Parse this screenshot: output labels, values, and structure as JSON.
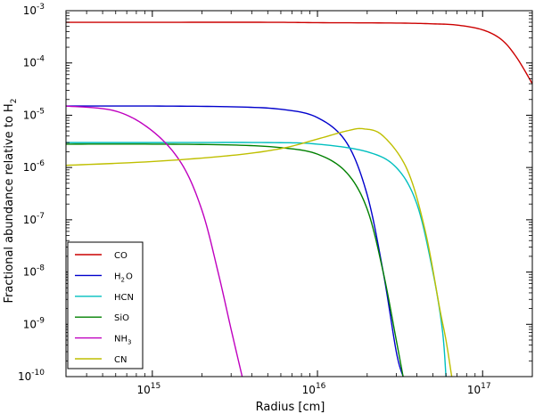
{
  "chart_data": {
    "type": "line",
    "xlabel": "Radius [cm]",
    "ylabel": "Fractional abundance relative to H",
    "ylabel_sub": "2",
    "xscale": "log",
    "yscale": "log",
    "xlim": [
      300000000000000.0,
      2e+17
    ],
    "ylim": [
      1e-10,
      0.001
    ],
    "x_ticks": [
      {
        "value": 1000000000000000.0,
        "base": "10",
        "exp": "15"
      },
      {
        "value": 1e+16,
        "base": "10",
        "exp": "16"
      },
      {
        "value": 1e+17,
        "base": "10",
        "exp": "17"
      }
    ],
    "y_ticks": [
      {
        "value": 1e-10,
        "base": "10",
        "exp": "-10"
      },
      {
        "value": 1e-09,
        "base": "10",
        "exp": "-9"
      },
      {
        "value": 1e-08,
        "base": "10",
        "exp": "-8"
      },
      {
        "value": 1e-07,
        "base": "10",
        "exp": "-7"
      },
      {
        "value": 1e-06,
        "base": "10",
        "exp": "-6"
      },
      {
        "value": 1e-05,
        "base": "10",
        "exp": "-5"
      },
      {
        "value": 0.0001,
        "base": "10",
        "exp": "-4"
      },
      {
        "value": 0.001,
        "base": "10",
        "exp": "-3"
      }
    ],
    "legend_position": "lower-left",
    "series": [
      {
        "name": "CO",
        "label": "CO",
        "sub": "",
        "color": "#cc0000",
        "x": [
          300000000000000.0,
          1000000000000000.0,
          5000000000000000.0,
          1e+16,
          3e+16,
          5e+16,
          7e+16,
          1e+17,
          1.3e+17,
          1.6e+17,
          2e+17
        ],
        "y": [
          0.0006,
          0.0006,
          0.0006,
          0.00059,
          0.00058,
          0.00056,
          0.00053,
          0.00043,
          0.00028,
          0.00013,
          4e-05
        ]
      },
      {
        "name": "H2O",
        "label": "H",
        "sub": "2",
        "label_suffix": "O",
        "color": "#0000cc",
        "x": [
          300000000000000.0,
          1000000000000000.0,
          3000000000000000.0,
          6000000000000000.0,
          1e+16,
          1.5e+16,
          2e+16,
          2.5e+16,
          3e+16,
          3.3e+16
        ],
        "y": [
          1.5e-05,
          1.5e-05,
          1.45e-05,
          1.3e-05,
          9e-06,
          3e-06,
          3e-07,
          1e-08,
          3e-10,
          1e-10
        ]
      },
      {
        "name": "HCN",
        "label": "HCN",
        "sub": "",
        "color": "#00bfbf",
        "x": [
          300000000000000.0,
          1000000000000000.0,
          5000000000000000.0,
          1e+16,
          2e+16,
          3e+16,
          4e+16,
          5e+16,
          5.7e+16,
          6e+16
        ],
        "y": [
          3e-06,
          3e-06,
          3e-06,
          2.8e-06,
          2e-06,
          1e-06,
          2e-07,
          1e-08,
          8e-10,
          1e-10
        ]
      },
      {
        "name": "SiO",
        "label": "SiO",
        "sub": "",
        "color": "#008000",
        "x": [
          300000000000000.0,
          1000000000000000.0,
          3000000000000000.0,
          6000000000000000.0,
          1e+16,
          1.5e+16,
          2e+16,
          2.5e+16,
          3e+16,
          3.3e+16
        ],
        "y": [
          2.8e-06,
          2.8e-06,
          2.7e-06,
          2.4e-06,
          1.8e-06,
          8e-07,
          1.6e-07,
          1e-08,
          5e-10,
          1e-10
        ]
      },
      {
        "name": "NH3",
        "label": "NH",
        "sub": "3",
        "color": "#bf00bf",
        "x": [
          300000000000000.0,
          600000000000000.0,
          1000000000000000.0,
          1500000000000000.0,
          2000000000000000.0,
          2500000000000000.0,
          3000000000000000.0,
          3500000000000000.0
        ],
        "y": [
          1.5e-05,
          1.2e-05,
          5e-06,
          1.2e-06,
          1.5e-07,
          1e-08,
          8e-10,
          1e-10
        ]
      },
      {
        "name": "CN",
        "label": "CN",
        "sub": "",
        "color": "#bfbf00",
        "x": [
          300000000000000.0,
          1000000000000000.0,
          3000000000000000.0,
          6000000000000000.0,
          1e+16,
          1.5e+16,
          1.9e+16,
          2.5e+16,
          3.5e+16,
          4.5e+16,
          5.5e+16,
          6e+16,
          6.5e+16
        ],
        "y": [
          1.1e-06,
          1.3e-06,
          1.7e-06,
          2.3e-06,
          3.5e-06,
          5e-06,
          5.5e-06,
          4e-06,
          9e-07,
          6e-08,
          2e-09,
          5e-10,
          1e-10
        ]
      }
    ]
  }
}
